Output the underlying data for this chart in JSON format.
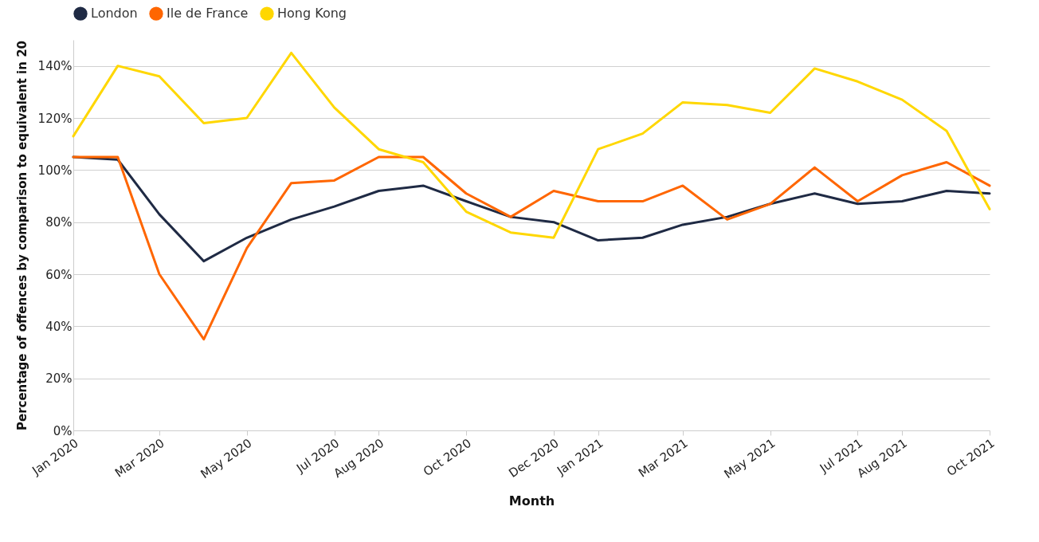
{
  "chart_data": {
    "type": "line",
    "xlabel": "Month",
    "ylabel": "Percentage of offences by comparison to equivalent in 20",
    "x": [
      "2020-01",
      "2020-02",
      "2020-03",
      "2020-04",
      "2020-05",
      "2020-06",
      "2020-07",
      "2020-08",
      "2020-09",
      "2020-10",
      "2020-11",
      "2020-12",
      "2021-01",
      "2021-02",
      "2021-03",
      "2021-04",
      "2021-05",
      "2021-06",
      "2021-07",
      "2021-08",
      "2021-09",
      "2021-10"
    ],
    "series": [
      {
        "name": "London",
        "color": "#1f2a44",
        "values": [
          105,
          104,
          83,
          65,
          74,
          81,
          86,
          92,
          94,
          88,
          82,
          80,
          73,
          74,
          79,
          82,
          87,
          91,
          87,
          88,
          92,
          91
        ]
      },
      {
        "name": "Ile de France",
        "color": "#ff6600",
        "values": [
          105,
          105,
          60,
          35,
          70,
          95,
          96,
          105,
          105,
          91,
          82,
          92,
          88,
          88,
          94,
          81,
          87,
          101,
          88,
          98,
          103,
          94
        ]
      },
      {
        "name": "Hong Kong",
        "color": "#ffd700",
        "values": [
          113,
          140,
          136,
          118,
          120,
          145,
          124,
          108,
          103,
          84,
          76,
          74,
          108,
          114,
          126,
          125,
          122,
          139,
          134,
          127,
          115,
          85
        ]
      }
    ],
    "xlim": [
      "2020-01",
      "2021-10"
    ],
    "xticks": [
      {
        "value": "2020-01",
        "label": "Jan 2020"
      },
      {
        "value": "2020-03",
        "label": "Mar 2020"
      },
      {
        "value": "2020-05",
        "label": "May 2020"
      },
      {
        "value": "2020-07",
        "label": "Jul 2020"
      },
      {
        "value": "2020-08",
        "label": "Aug 2020"
      },
      {
        "value": "2020-10",
        "label": "Oct 2020"
      },
      {
        "value": "2020-12",
        "label": "Dec 2020"
      },
      {
        "value": "2021-01",
        "label": "Jan 2021"
      },
      {
        "value": "2021-03",
        "label": "Mar 2021"
      },
      {
        "value": "2021-05",
        "label": "May 2021"
      },
      {
        "value": "2021-07",
        "label": "Jul 2021"
      },
      {
        "value": "2021-08",
        "label": "Aug 2021"
      },
      {
        "value": "2021-10",
        "label": "Oct 2021"
      }
    ],
    "ylim": [
      0,
      150
    ],
    "yticks": [
      {
        "value": 0,
        "label": "0%"
      },
      {
        "value": 20,
        "label": "20%"
      },
      {
        "value": 40,
        "label": "40%"
      },
      {
        "value": 60,
        "label": "60%"
      },
      {
        "value": 80,
        "label": "80%"
      },
      {
        "value": 100,
        "label": "100%"
      },
      {
        "value": 120,
        "label": "120%"
      },
      {
        "value": 140,
        "label": "140%"
      }
    ],
    "grid": "y",
    "legend": "top left",
    "marker": "none",
    "line_style": "solid"
  }
}
